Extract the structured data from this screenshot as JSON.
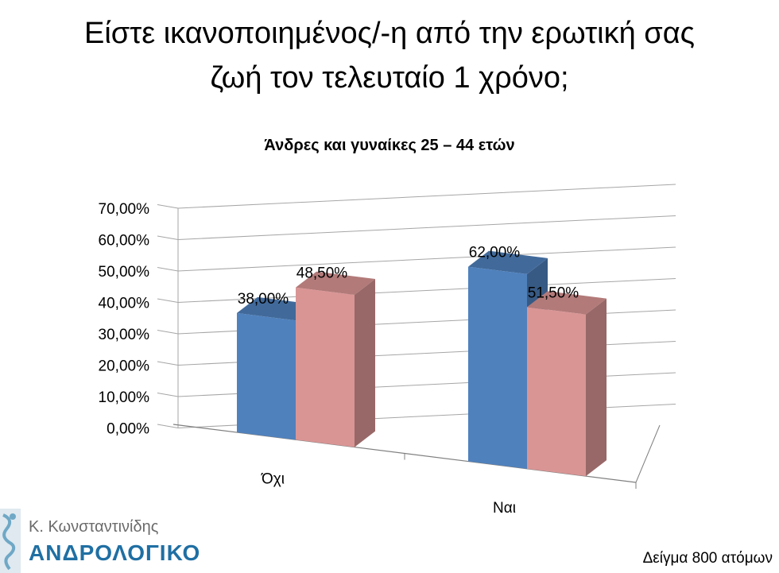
{
  "slide": {
    "title_line1": "Είστε ικανοποιημένος/-η από την ερωτική σας",
    "title_line2": "ζωή τον τελευταίο 1 χρόνο;"
  },
  "chart_data": {
    "type": "bar",
    "title": "Άνδρες και γυναίκες 25 – 44 ετών",
    "categories": [
      "Όχι",
      "Ναι"
    ],
    "series": [
      {
        "values": [
          38.0,
          62.0
        ],
        "labels": [
          "38,00%",
          "62,00%"
        ],
        "color": "#4f81bd"
      },
      {
        "values": [
          48.5,
          51.5
        ],
        "labels": [
          "48,50%",
          "51,50%"
        ],
        "color": "#d99594"
      }
    ],
    "ylim": [
      0,
      70
    ],
    "yticks": [
      "0,00%",
      "10,00%",
      "20,00%",
      "30,00%",
      "40,00%",
      "50,00%",
      "60,00%",
      "70,00%"
    ],
    "grid": true,
    "legend": "none",
    "style": "3d-clustered-column"
  },
  "footer": {
    "doctor": "Κ. Κωνσταντινίδης",
    "brand": "ΑΝΔΡΟΛΟΓΙΚΟ",
    "sample_note": "Δείγμα 800 ατόμων"
  },
  "colors": {
    "brand": "#1f6fa3",
    "series1": "#4f81bd",
    "series2": "#d99594"
  }
}
